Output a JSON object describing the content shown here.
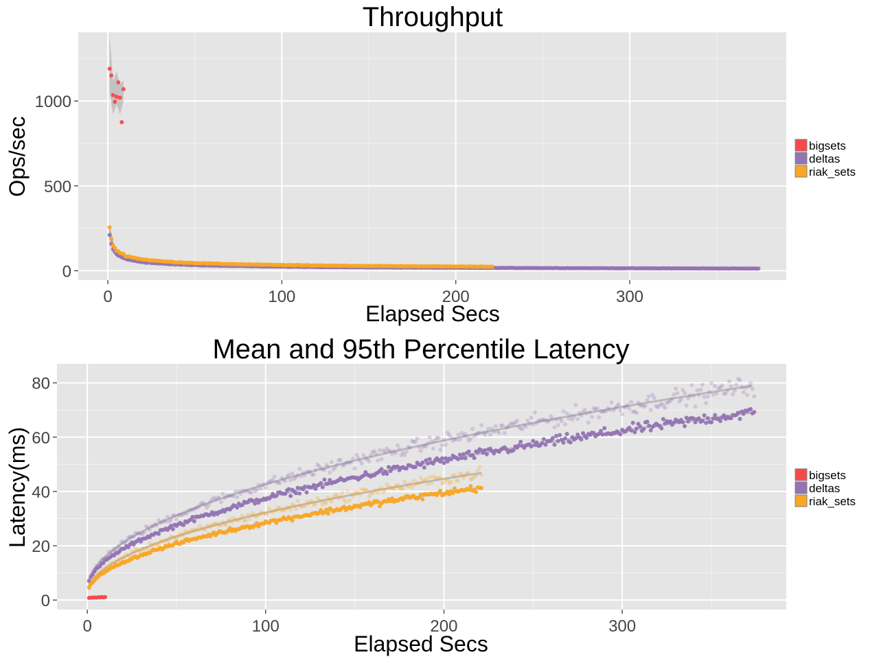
{
  "chart_data": [
    {
      "type": "scatter",
      "title": "Throughput",
      "xlabel": "Elapsed Secs",
      "ylabel": "Ops/sec",
      "xlim": [
        -17,
        390
      ],
      "ylim": [
        -55,
        1405
      ],
      "xticks": [
        0,
        100,
        200,
        300
      ],
      "yticks": [
        0,
        500,
        1000
      ],
      "grid": true,
      "legend": {
        "position": "right",
        "entries": [
          {
            "label": "bigsets",
            "color": "#f8494a"
          },
          {
            "label": "deltas",
            "color": "#9474b4"
          },
          {
            "label": "riak_sets",
            "color": "#f9a725"
          }
        ]
      },
      "series": [
        {
          "name": "bigsets",
          "color": "#f8494a",
          "x": [
            1,
            2,
            3,
            4,
            5,
            6,
            7,
            8,
            9
          ],
          "y": [
            1190,
            1150,
            1035,
            995,
            1025,
            1110,
            1020,
            875,
            1070
          ]
        },
        {
          "name": "deltas",
          "color": "#9474b4",
          "x_range": [
            1,
            374
          ],
          "model": "power",
          "a": 210,
          "p": 0.47
        },
        {
          "name": "riak_sets",
          "color": "#f9a725",
          "x_range": [
            1,
            221
          ],
          "model": "power",
          "a": 245,
          "p": 0.43
        }
      ],
      "bands": [
        {
          "series": "bigsets",
          "x": [
            1,
            3,
            5,
            7,
            9
          ],
          "lower": [
            1050,
            920,
            980,
            920,
            1000
          ],
          "upper": [
            1390,
            1120,
            1175,
            1100,
            1120
          ]
        }
      ]
    },
    {
      "type": "scatter",
      "title": "Mean and 95th Percentile Latency",
      "xlabel": "Elapsed Secs",
      "ylabel": "Latency(ms)",
      "xlim": [
        -17,
        392
      ],
      "ylim": [
        -3.5,
        87
      ],
      "xticks": [
        0,
        100,
        200,
        300
      ],
      "yticks": [
        0,
        20,
        40,
        60,
        80
      ],
      "grid": true,
      "legend": {
        "position": "right",
        "entries": [
          {
            "label": "bigsets",
            "color": "#f8494a"
          },
          {
            "label": "deltas",
            "color": "#9474b4"
          },
          {
            "label": "riak_sets",
            "color": "#f9a725"
          }
        ]
      },
      "series": [
        {
          "name": "bigsets mean",
          "color": "#f8494a",
          "x": [
            1,
            2,
            3,
            4,
            5,
            6,
            7,
            8,
            9,
            10
          ],
          "y": [
            0.8,
            0.9,
            0.9,
            1.0,
            0.9,
            1.0,
            1.0,
            1.1,
            1.0,
            1.1
          ]
        },
        {
          "name": "deltas mean",
          "color": "#9474b4",
          "x_range": [
            1,
            374
          ],
          "model": "sqrt",
          "a": 3.6,
          "b": 3.39
        },
        {
          "name": "deltas p95",
          "color": "#9474b4",
          "faded": true,
          "x_range": [
            1,
            374
          ],
          "model": "sqrt",
          "a": 3.6,
          "b": 3.9
        },
        {
          "name": "riak_sets mean",
          "color": "#f9a725",
          "x_range": [
            1,
            221
          ],
          "model": "sqrt",
          "a": 2.0,
          "b": 2.65
        },
        {
          "name": "riak_sets p95",
          "color": "#f9a725",
          "faded": true,
          "x_range": [
            1,
            221
          ],
          "model": "sqrt",
          "a": 2.2,
          "b": 3.0
        }
      ]
    }
  ]
}
